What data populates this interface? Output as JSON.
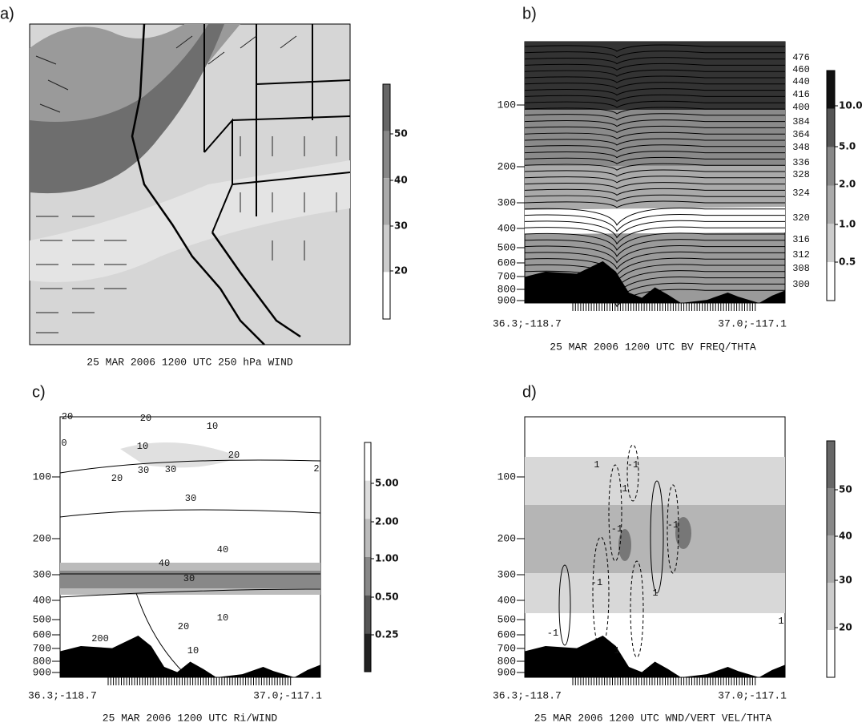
{
  "panels": [
    {
      "label": "a)",
      "caption": "25 MAR 2006 1200 UTC 250 hPa WIND",
      "colorbar": [
        "50",
        "40",
        "30",
        "20"
      ]
    },
    {
      "label": "b)",
      "caption": "25 MAR 2006 1200 UTC BV FREQ/THTA",
      "y_axis": [
        "100",
        "200",
        "300",
        "400",
        "500",
        "600",
        "700",
        "800",
        "900"
      ],
      "x_axis": [
        "36.3;-118.7",
        "37.0;-117.1"
      ],
      "colorbar": [
        "10.0",
        "5.0",
        "2.0",
        "1.0",
        "0.5"
      ],
      "contour_labels": [
        "476",
        "460",
        "440",
        "416",
        "400",
        "384",
        "364",
        "348",
        "336",
        "328",
        "324",
        "320",
        "316",
        "312",
        "308",
        "300"
      ]
    },
    {
      "label": "c)",
      "caption": "25 MAR 2006 1200 UTC Ri/WIND",
      "y_axis": [
        "100",
        "200",
        "300",
        "400",
        "500",
        "600",
        "700",
        "800",
        "900"
      ],
      "x_axis": [
        "36.3;-118.7",
        "37.0;-117.1"
      ],
      "colorbar": [
        "5.00",
        "2.00",
        "1.00",
        "0.50",
        "0.25"
      ],
      "contour_labels": [
        "20",
        "20",
        "10",
        "0",
        "10",
        "20",
        "30",
        "30",
        "20",
        "2",
        "30",
        "40",
        "40",
        "30",
        "20",
        "10",
        "200",
        "10"
      ]
    },
    {
      "label": "d)",
      "caption": "25 MAR 2006 1200 UTC WND/VERT VEL/THTA",
      "y_axis": [
        "100",
        "200",
        "300",
        "400",
        "500",
        "600",
        "700",
        "800",
        "900"
      ],
      "x_axis": [
        "36.3;-118.7",
        "37.0;-117.1"
      ],
      "colorbar": [
        "50",
        "40",
        "30",
        "20"
      ],
      "contour_labels": [
        "1",
        "-1",
        "1",
        "-1",
        "-1",
        "-1",
        "1",
        "1",
        "-1",
        "1"
      ]
    }
  ]
}
